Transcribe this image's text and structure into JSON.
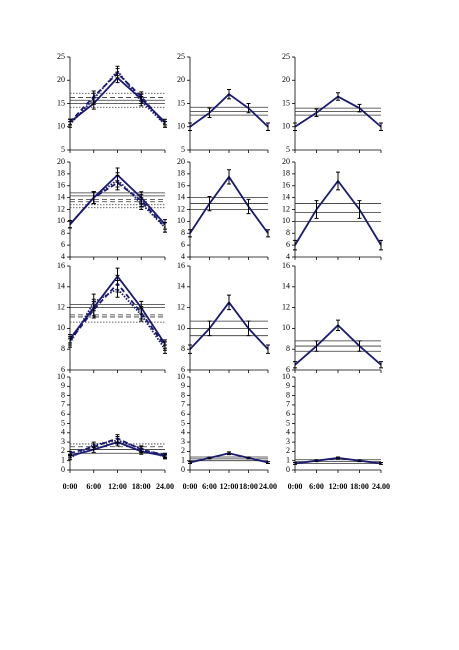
{
  "chart_data": [
    {
      "type": "line",
      "categories": [
        null,
        null,
        null,
        null,
        null
      ],
      "ylim": [
        5,
        25
      ],
      "yticks": [
        5,
        10,
        15,
        20,
        25
      ],
      "series": [
        {
          "color": "#1a1a72",
          "dash": "solid",
          "values": [
            11,
            15,
            20.5,
            16,
            11
          ],
          "errors": [
            0.6,
            1.2,
            1,
            1,
            0.6
          ]
        },
        {
          "color": "#1a1a72",
          "dash": "dashed",
          "values": [
            11,
            16.5,
            21.5,
            16.5,
            10.5
          ],
          "errors": [
            0.6,
            1.2,
            1,
            1,
            0.6
          ]
        },
        {
          "color": "#1a1a72",
          "dash": "dotted",
          "values": [
            10.5,
            16,
            22,
            15.5,
            10.5
          ],
          "errors": [
            0.6,
            1.2,
            1,
            1,
            0.6
          ]
        }
      ],
      "reference_lines": [
        {
          "value": 17.2,
          "dash": "dotted"
        },
        {
          "value": 16.3,
          "dash": "dashed"
        },
        {
          "value": 15.7,
          "dash": "solid"
        },
        {
          "value": 15,
          "dash": "solid"
        },
        {
          "value": 14.2,
          "dash": "dotted"
        }
      ]
    },
    {
      "type": "line",
      "categories": [
        null,
        null,
        null,
        null,
        null
      ],
      "ylim": [
        5,
        25
      ],
      "yticks": [
        5,
        10,
        15,
        20,
        25
      ],
      "series": [
        {
          "color": "#1a1a72",
          "dash": "solid",
          "values": [
            10,
            13,
            17,
            14,
            10
          ],
          "errors": [
            0.8,
            1,
            1,
            1,
            0.8
          ]
        }
      ],
      "reference_lines": [
        {
          "value": 14.2,
          "dash": "solid"
        },
        {
          "value": 13.3,
          "dash": "solid"
        },
        {
          "value": 12.5,
          "dash": "solid"
        }
      ]
    },
    {
      "type": "line",
      "categories": [
        null,
        null,
        null,
        null,
        null
      ],
      "ylim": [
        5,
        25
      ],
      "yticks": [
        5,
        10,
        15,
        20,
        25
      ],
      "series": [
        {
          "color": "#1a1a72",
          "dash": "solid",
          "values": [
            10,
            13,
            16.5,
            14,
            10
          ],
          "errors": [
            0.8,
            0.8,
            0.8,
            0.8,
            0.8
          ]
        }
      ],
      "reference_lines": [
        {
          "value": 14,
          "dash": "solid"
        },
        {
          "value": 13.3,
          "dash": "solid"
        },
        {
          "value": 12.5,
          "dash": "solid"
        }
      ]
    },
    {
      "type": "line",
      "categories": [
        null,
        null,
        null,
        null,
        null
      ],
      "ylim": [
        4,
        20
      ],
      "yticks": [
        4,
        6,
        8,
        10,
        12,
        14,
        16,
        18,
        20
      ],
      "series": [
        {
          "color": "#1a1a72",
          "dash": "solid",
          "values": [
            9.5,
            14,
            17.8,
            14,
            9.5
          ],
          "errors": [
            0.6,
            1,
            1.2,
            1,
            0.8
          ]
        },
        {
          "color": "#1a1a72",
          "dash": "dashed",
          "values": [
            9.5,
            14,
            16.5,
            13.5,
            9
          ],
          "errors": [
            0.6,
            1,
            1.2,
            1,
            0.8
          ]
        },
        {
          "color": "#1a1a72",
          "dash": "dotted",
          "values": [
            9.5,
            14,
            17,
            13,
            9
          ],
          "errors": [
            0.6,
            1,
            1.2,
            1,
            0.8
          ]
        }
      ],
      "reference_lines": [
        {
          "value": 14.8,
          "dash": "solid"
        },
        {
          "value": 14.3,
          "dash": "solid"
        },
        {
          "value": 13.7,
          "dash": "dashed"
        },
        {
          "value": 13.3,
          "dash": "dashed"
        },
        {
          "value": 12.8,
          "dash": "dotted"
        },
        {
          "value": 12.3,
          "dash": "dotted"
        }
      ]
    },
    {
      "type": "line",
      "categories": [
        null,
        null,
        null,
        null,
        null
      ],
      "ylim": [
        4,
        20
      ],
      "yticks": [
        4,
        6,
        8,
        10,
        12,
        14,
        16,
        18,
        20
      ],
      "series": [
        {
          "color": "#1a1a72",
          "dash": "solid",
          "values": [
            8,
            13,
            17.5,
            12.5,
            8
          ],
          "errors": [
            0.6,
            1.2,
            1.2,
            1.2,
            0.6
          ]
        }
      ],
      "reference_lines": [
        {
          "value": 14,
          "dash": "solid"
        },
        {
          "value": 13,
          "dash": "solid"
        },
        {
          "value": 12,
          "dash": "solid"
        }
      ]
    },
    {
      "type": "line",
      "categories": [
        null,
        null,
        null,
        null,
        null
      ],
      "ylim": [
        4,
        20
      ],
      "yticks": [
        4,
        6,
        8,
        10,
        12,
        14,
        16,
        18,
        20
      ],
      "series": [
        {
          "color": "#1a1a72",
          "dash": "solid",
          "values": [
            6,
            12,
            16.8,
            12,
            6
          ],
          "errors": [
            0.8,
            1.5,
            1.5,
            1.5,
            0.8
          ]
        }
      ],
      "reference_lines": [
        {
          "value": 13,
          "dash": "solid"
        },
        {
          "value": 11.5,
          "dash": "solid"
        },
        {
          "value": 10,
          "dash": "solid"
        }
      ]
    },
    {
      "type": "line",
      "categories": [
        null,
        null,
        null,
        null,
        null
      ],
      "ylim": [
        6,
        16
      ],
      "yticks": [
        6,
        8,
        10,
        12,
        14,
        16
      ],
      "series": [
        {
          "color": "#1a1a72",
          "dash": "solid",
          "values": [
            9,
            12,
            15,
            12,
            8.5
          ],
          "errors": [
            0.4,
            0.8,
            0.8,
            0.6,
            0.4
          ]
        },
        {
          "color": "#1a1a72",
          "dash": "dashed",
          "values": [
            8.8,
            11.8,
            14.3,
            11.5,
            8.3
          ],
          "errors": [
            0.4,
            0.8,
            0.8,
            0.6,
            0.4
          ]
        },
        {
          "color": "#1a1a72",
          "dash": "dotted",
          "values": [
            8.6,
            12.5,
            13.8,
            11.3,
            8
          ],
          "errors": [
            0.4,
            0.8,
            0.8,
            0.6,
            0.4
          ]
        }
      ],
      "reference_lines": [
        {
          "value": 12.3,
          "dash": "solid"
        },
        {
          "value": 12,
          "dash": "solid"
        },
        {
          "value": 11.3,
          "dash": "dashed"
        },
        {
          "value": 11.1,
          "dash": "dashed"
        },
        {
          "value": 10.6,
          "dash": "dotted"
        }
      ]
    },
    {
      "type": "line",
      "categories": [
        null,
        null,
        null,
        null,
        null
      ],
      "ylim": [
        6,
        16
      ],
      "yticks": [
        6,
        8,
        10,
        12,
        14,
        16
      ],
      "series": [
        {
          "color": "#1a1a72",
          "dash": "solid",
          "values": [
            8,
            10,
            12.5,
            10,
            8
          ],
          "errors": [
            0.4,
            0.7,
            0.7,
            0.7,
            0.4
          ]
        }
      ],
      "reference_lines": [
        {
          "value": 10.7,
          "dash": "solid"
        },
        {
          "value": 10,
          "dash": "solid"
        },
        {
          "value": 9.3,
          "dash": "solid"
        }
      ]
    },
    {
      "type": "line",
      "categories": [
        null,
        null,
        null,
        null,
        null
      ],
      "ylim": [
        6,
        16
      ],
      "yticks": [
        6,
        8,
        10,
        12,
        14,
        16
      ],
      "series": [
        {
          "color": "#1a1a72",
          "dash": "solid",
          "values": [
            6.5,
            8.3,
            10.3,
            8.3,
            6.5
          ],
          "errors": [
            0.3,
            0.5,
            0.5,
            0.5,
            0.3
          ]
        }
      ],
      "reference_lines": [
        {
          "value": 8.8,
          "dash": "solid"
        },
        {
          "value": 8.3,
          "dash": "solid"
        },
        {
          "value": 7.8,
          "dash": "solid"
        }
      ]
    },
    {
      "type": "line",
      "categories": [
        "0:00",
        "6:00",
        "12:00",
        "18:00",
        "24.00"
      ],
      "ylim": [
        0,
        10
      ],
      "yticks": [
        0,
        1,
        2,
        3,
        4,
        5,
        6,
        7,
        8,
        9,
        10
      ],
      "series": [
        {
          "color": "#1a1a72",
          "dash": "solid",
          "values": [
            1.5,
            2.2,
            3,
            2,
            1.5
          ],
          "errors": [
            0.2,
            0.3,
            0.4,
            0.3,
            0.2
          ]
        },
        {
          "color": "#1a1a72",
          "dash": "dashed",
          "values": [
            1.8,
            2.5,
            3.4,
            2.2,
            1.6
          ],
          "errors": [
            0.2,
            0.3,
            0.4,
            0.3,
            0.2
          ]
        },
        {
          "color": "#1a1a72",
          "dash": "dotted",
          "values": [
            1.3,
            2.7,
            3.2,
            2.3,
            1.4
          ],
          "errors": [
            0.2,
            0.3,
            0.4,
            0.3,
            0.2
          ]
        }
      ],
      "reference_lines": [
        {
          "value": 2.8,
          "dash": "dotted"
        },
        {
          "value": 2.5,
          "dash": "dashed"
        },
        {
          "value": 2.2,
          "dash": "solid"
        },
        {
          "value": 1.8,
          "dash": "solid"
        }
      ]
    },
    {
      "type": "line",
      "categories": [
        "0:00",
        "6:00",
        "12:00",
        "18:00",
        "24.00"
      ],
      "ylim": [
        0,
        10
      ],
      "yticks": [
        0,
        1,
        2,
        3,
        4,
        5,
        6,
        7,
        8,
        9,
        10
      ],
      "series": [
        {
          "color": "#1a1a72",
          "dash": "solid",
          "values": [
            0.8,
            1.3,
            1.8,
            1.3,
            0.8
          ],
          "errors": [
            0.1,
            0.1,
            0.15,
            0.1,
            0.1
          ]
        }
      ],
      "reference_lines": [
        {
          "value": 1.4,
          "dash": "solid"
        },
        {
          "value": 1.2,
          "dash": "solid"
        },
        {
          "value": 1,
          "dash": "solid"
        }
      ]
    },
    {
      "type": "line",
      "categories": [
        "0:00",
        "6:00",
        "12:00",
        "18:00",
        "24.00"
      ],
      "ylim": [
        0,
        10
      ],
      "yticks": [
        0,
        1,
        2,
        3,
        4,
        5,
        6,
        7,
        8,
        9,
        10
      ],
      "series": [
        {
          "color": "#1a1a72",
          "dash": "solid",
          "values": [
            0.7,
            1,
            1.3,
            1,
            0.7
          ],
          "errors": [
            0.1,
            0.1,
            0.1,
            0.1,
            0.1
          ]
        }
      ],
      "reference_lines": [
        {
          "value": 1.1,
          "dash": "solid"
        },
        {
          "value": 0.9,
          "dash": "solid"
        },
        {
          "value": 0.7,
          "dash": "solid"
        }
      ]
    }
  ]
}
